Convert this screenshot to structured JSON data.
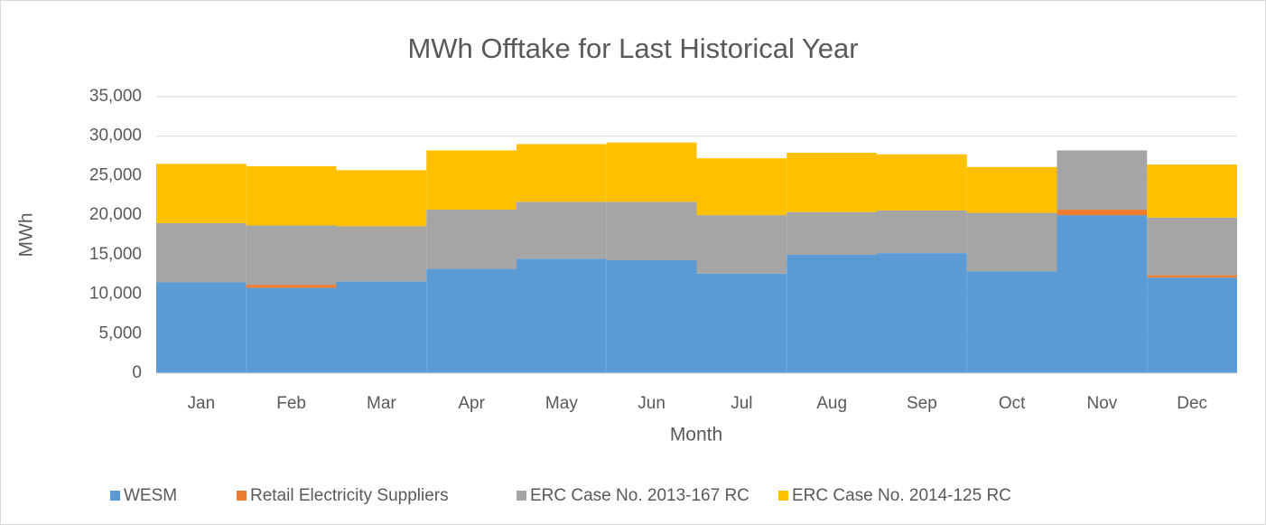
{
  "chart_data": {
    "type": "stacked_bar",
    "title": "MWh Offtake for Last Historical Year",
    "xlabel": "Month",
    "ylabel": "MWh",
    "categories": [
      "Jan",
      "Feb",
      "Mar",
      "Apr",
      "May",
      "Jun",
      "Jul",
      "Aug",
      "Sep",
      "Oct",
      "Nov",
      "Dec"
    ],
    "series": [
      {
        "name": "WESM",
        "color": "#5b9bd5",
        "values": [
          11500,
          10800,
          11600,
          13200,
          14500,
          14300,
          12600,
          15000,
          15200,
          12900,
          20000,
          12100
        ]
      },
      {
        "name": "Retail Electricity Suppliers",
        "color": "#ed7d31",
        "values": [
          0,
          400,
          0,
          0,
          0,
          0,
          0,
          0,
          0,
          0,
          700,
          300
        ]
      },
      {
        "name": "ERC Case No. 2013-167 RC",
        "color": "#a5a5a5",
        "values": [
          7500,
          7500,
          7000,
          7500,
          7200,
          7400,
          7400,
          5400,
          5400,
          7400,
          7500,
          7300
        ]
      },
      {
        "name": "ERC Case No. 2014-125 RC",
        "color": "#ffc000",
        "values": [
          7500,
          7500,
          7100,
          7500,
          7300,
          7500,
          7200,
          7500,
          7100,
          5800,
          0,
          6700
        ]
      }
    ],
    "ylim": [
      0,
      35000
    ],
    "yticks": [
      0,
      {
        "value": 5000,
        "label": "5,000"
      },
      {
        "value": 10000,
        "label": "10,000"
      },
      {
        "value": 15000,
        "label": "15,000"
      },
      {
        "value": 20000,
        "label": "20,000"
      },
      {
        "value": 25000,
        "label": "25,000"
      },
      {
        "value": 30000,
        "label": "30,000"
      },
      {
        "value": 35000,
        "label": "35,000"
      }
    ],
    "grid": true,
    "legend": "bottom"
  }
}
